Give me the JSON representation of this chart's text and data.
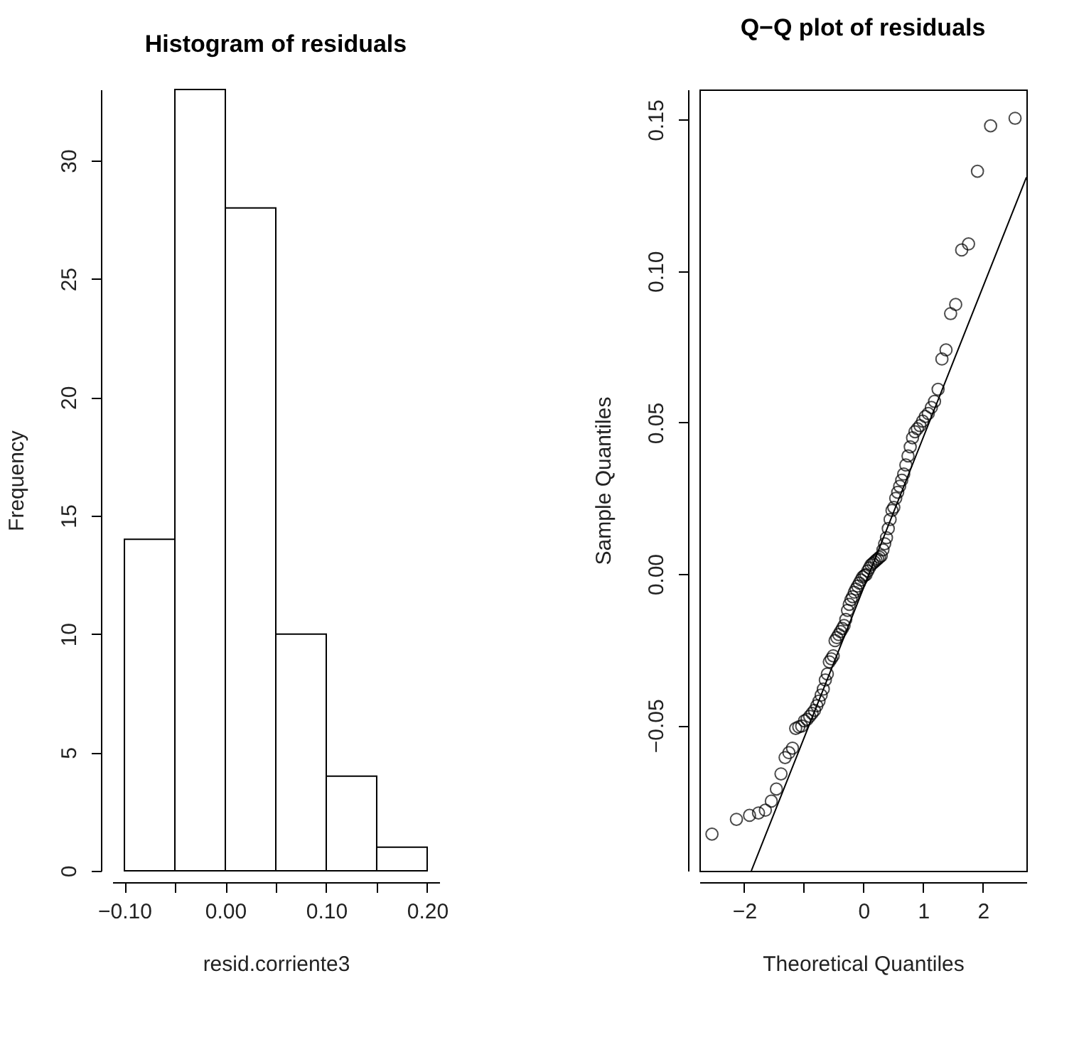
{
  "chart_data": [
    {
      "type": "histogram",
      "title": "Histogram of residuals",
      "xlabel": "resid.corriente3",
      "ylabel": "Frequency",
      "bins": [
        -0.1,
        -0.05,
        0,
        0.05,
        0.1,
        0.15,
        0.2
      ],
      "values": [
        14,
        33,
        28,
        10,
        4,
        1
      ],
      "color": "#ffffff",
      "xlim": [
        -0.112,
        0.212
      ],
      "ylim": [
        0,
        33
      ],
      "yticks": [
        0,
        5,
        10,
        15,
        20,
        25,
        30
      ],
      "xticks": [
        {
          "value": -0.1,
          "label": "−0.10"
        },
        {
          "value": -0.05,
          "label": null
        },
        {
          "value": 0,
          "label": "0.00"
        },
        {
          "value": 0.05,
          "label": null
        },
        {
          "value": 0.1,
          "label": "0.10"
        },
        {
          "value": 0.15,
          "label": null
        },
        {
          "value": 0.2,
          "label": "0.20"
        }
      ],
      "grid": false
    },
    {
      "type": "scatter",
      "title": "Q−Q plot of residuals",
      "xlabel": "Theoretical Quantiles",
      "ylabel": "Sample Quantiles",
      "xlim": [
        -2.75,
        2.73
      ],
      "ylim": [
        -0.098,
        0.16
      ],
      "xticks": [
        {
          "value": -2,
          "label": "−2"
        },
        {
          "value": -1,
          "label": null
        },
        {
          "value": 0,
          "label": "0"
        },
        {
          "value": 1,
          "label": "1"
        },
        {
          "value": 2,
          "label": "2"
        }
      ],
      "yticks": [
        {
          "value": -0.05,
          "label": "−0.05"
        },
        {
          "value": 0,
          "label": "0.00"
        },
        {
          "value": 0.05,
          "label": "0.05"
        },
        {
          "value": 0.1,
          "label": "0.10"
        },
        {
          "value": 0.15,
          "label": "0.15"
        }
      ],
      "grid": false,
      "series": [
        {
          "type": "scatter",
          "color": "#000000",
          "marker": "circle",
          "x": [
            -2.54,
            -2.13,
            -1.91,
            -1.76,
            -1.645,
            -1.545,
            -1.46,
            -1.383,
            -1.314,
            -1.25,
            -1.19,
            -1.137,
            -1.085,
            -1.036,
            -0.99,
            -0.946,
            -0.903,
            -0.862,
            -0.822,
            -0.783,
            -0.746,
            -0.71,
            -0.674,
            -0.64,
            -0.606,
            -0.573,
            -0.54,
            -0.508,
            -0.477,
            -0.446,
            -0.415,
            -0.385,
            -0.355,
            -0.326,
            -0.297,
            -0.268,
            -0.239,
            -0.21,
            -0.182,
            -0.154,
            -0.126,
            -0.098,
            -0.07,
            -0.042,
            -0.014,
            0.014,
            0.042,
            0.07,
            0.098,
            0.126,
            0.154,
            0.182,
            0.21,
            0.239,
            0.268,
            0.297,
            0.326,
            0.355,
            0.385,
            0.415,
            0.446,
            0.477,
            0.508,
            0.54,
            0.573,
            0.606,
            0.64,
            0.674,
            0.71,
            0.746,
            0.783,
            0.822,
            0.862,
            0.903,
            0.946,
            0.99,
            1.036,
            1.085,
            1.137,
            1.19,
            1.25,
            1.314,
            1.383,
            1.46,
            1.545,
            1.645,
            1.76,
            1.91,
            2.13,
            2.54
          ],
          "values": [
            -0.0859,
            -0.081,
            -0.0797,
            -0.0789,
            -0.078,
            -0.075,
            -0.071,
            -0.066,
            -0.0606,
            -0.059,
            -0.0575,
            -0.051,
            -0.0505,
            -0.0502,
            -0.0485,
            -0.048,
            -0.047,
            -0.046,
            -0.045,
            -0.0435,
            -0.042,
            -0.04,
            -0.038,
            -0.035,
            -0.033,
            -0.029,
            -0.028,
            -0.027,
            -0.022,
            -0.021,
            -0.02,
            -0.019,
            -0.018,
            -0.017,
            -0.015,
            -0.012,
            -0.01,
            -0.0085,
            -0.0075,
            -0.006,
            -0.005,
            -0.004,
            -0.003,
            -0.002,
            -0.001,
            -0.0005,
            -0.0002,
            0.001,
            0.002,
            0.003,
            0.0035,
            0.004,
            0.0045,
            0.005,
            0.0055,
            0.006,
            0.008,
            0.01,
            0.012,
            0.015,
            0.018,
            0.021,
            0.022,
            0.025,
            0.027,
            0.029,
            0.031,
            0.033,
            0.036,
            0.039,
            0.042,
            0.045,
            0.047,
            0.048,
            0.049,
            0.0505,
            0.052,
            0.053,
            0.055,
            0.057,
            0.061,
            0.071,
            0.074,
            0.086,
            0.089,
            0.107,
            0.109,
            0.133,
            0.148,
            0.1505
          ]
        },
        {
          "type": "line",
          "color": "#000000",
          "line_style": "solid",
          "x": [
            -1.88,
            2.73
          ],
          "values": [
            -0.098,
            0.131
          ]
        }
      ]
    }
  ]
}
